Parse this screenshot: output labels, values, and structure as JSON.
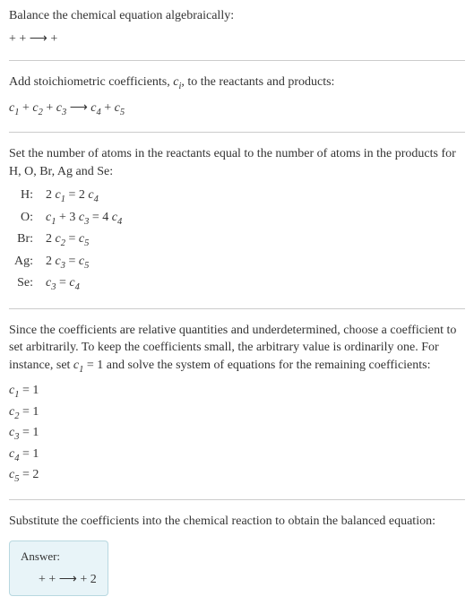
{
  "section1": {
    "line1": "Balance the chemical equation algebraically:",
    "line2": " +  +  ⟶  + "
  },
  "section2": {
    "line1_pre": "Add stoichiometric coefficients, ",
    "line1_ci": "c",
    "line1_ci_sub": "i",
    "line1_post": ", to the reactants and products:",
    "eq_c1": "c",
    "eq_c1_sub": "1",
    "eq_plus1": "  + ",
    "eq_c2": "c",
    "eq_c2_sub": "2",
    "eq_plus2": "  + ",
    "eq_c3": "c",
    "eq_c3_sub": "3",
    "eq_arrow": "  ⟶ ",
    "eq_c4": "c",
    "eq_c4_sub": "4",
    "eq_plus3": "  + ",
    "eq_c5": "c",
    "eq_c5_sub": "5"
  },
  "section3": {
    "intro": "Set the number of atoms in the reactants equal to the number of atoms in the products for H, O, Br, Ag and Se:",
    "rows": [
      {
        "label": "H:",
        "eq_parts": [
          "2 ",
          "c",
          "1",
          " = 2 ",
          "c",
          "4"
        ]
      },
      {
        "label": "O:",
        "eq_parts": [
          "",
          "c",
          "1",
          " + 3 ",
          "c",
          "3",
          " = 4 ",
          "c",
          "4"
        ]
      },
      {
        "label": "Br:",
        "eq_parts": [
          "2 ",
          "c",
          "2",
          " = ",
          "c",
          "5"
        ]
      },
      {
        "label": "Ag:",
        "eq_parts": [
          "2 ",
          "c",
          "3",
          " = ",
          "c",
          "5"
        ]
      },
      {
        "label": "Se:",
        "eq_parts": [
          "",
          "c",
          "3",
          " = ",
          "c",
          "4"
        ]
      }
    ]
  },
  "section4": {
    "intro_pre": "Since the coefficients are relative quantities and underdetermined, choose a coefficient to set arbitrarily. To keep the coefficients small, the arbitrary value is ordinarily one. For instance, set ",
    "intro_c": "c",
    "intro_c_sub": "1",
    "intro_post": " = 1 and solve the system of equations for the remaining coefficients:",
    "coefs": [
      {
        "c": "c",
        "sub": "1",
        "val": " = 1"
      },
      {
        "c": "c",
        "sub": "2",
        "val": " = 1"
      },
      {
        "c": "c",
        "sub": "3",
        "val": " = 1"
      },
      {
        "c": "c",
        "sub": "4",
        "val": " = 1"
      },
      {
        "c": "c",
        "sub": "5",
        "val": " = 2"
      }
    ]
  },
  "section5": {
    "intro": "Substitute the coefficients into the chemical reaction to obtain the balanced equation:",
    "answer_label": "Answer:",
    "answer_eq": " +  +  ⟶  + 2 "
  }
}
